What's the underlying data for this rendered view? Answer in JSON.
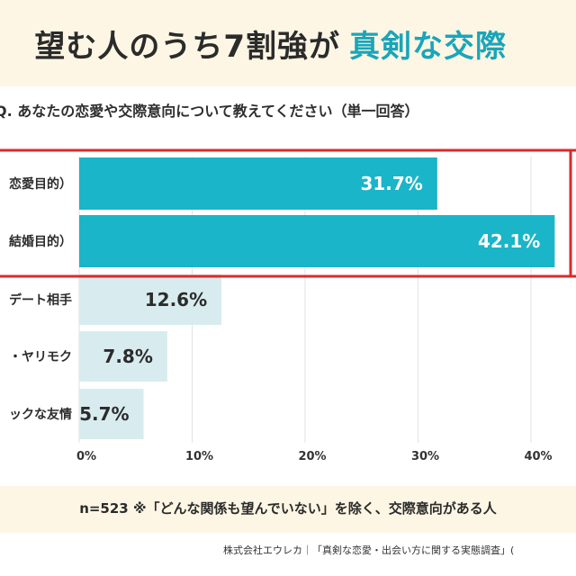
{
  "headline": {
    "lead": "望む人のうち7割強が",
    "accent": "真剣な交際"
  },
  "question": "Q. あなたの恋愛や交際意向について教えてください（単一回答）",
  "note": "n=523 ※「どんな関係も望んでいない」を除く、交際意向がある人",
  "source": "株式会社エウレカ｜「真剣な恋愛・出会い方に関する実態調査」(",
  "colors": {
    "highlight_bar": "#1ab5c8",
    "other_bar": "#d8ecef",
    "accent_text": "#1aa5b9",
    "highlight_frame": "#d92b2b",
    "band": "#fdf6e4"
  },
  "chart_data": {
    "type": "bar",
    "orientation": "horizontal",
    "categories": [
      "恋愛目的）",
      "結婚目的）",
      "デート相手",
      "・ヤリモク",
      "ックな友情"
    ],
    "values": [
      31.7,
      42.1,
      12.6,
      7.8,
      5.7
    ],
    "value_labels": [
      "31.7%",
      "42.1%",
      "12.6%",
      "7.8%",
      "5.7%"
    ],
    "highlighted": [
      true,
      true,
      false,
      false,
      false
    ],
    "x_ticks": [
      "0%",
      "10%",
      "20%",
      "30%",
      "40%"
    ],
    "xlim": [
      0,
      42
    ],
    "grid": true
  }
}
